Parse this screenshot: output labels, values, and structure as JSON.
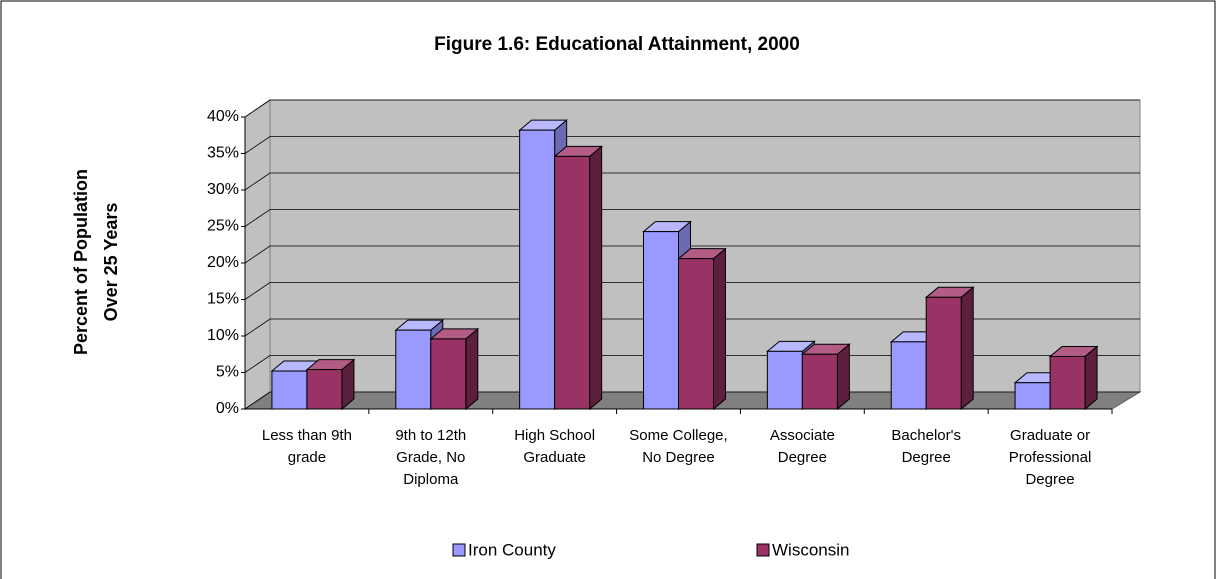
{
  "chart_data": {
    "type": "bar3d",
    "title": "Figure 1.6: Educational Attainment, 2000",
    "y_label": [
      "Percent of Population",
      "Over 25 Years"
    ],
    "categories": [
      "Less than 9th grade",
      "9th to 12th Grade, No Diploma",
      "High School Graduate",
      "Some College, No Degree",
      "Associate Degree",
      "Bachelor's Degree",
      "Graduate or Professional Degree"
    ],
    "series": [
      {
        "name": "Iron County",
        "color": "#9999ff",
        "side": "#6b6bb3",
        "top": "#b8b8ff",
        "values": [
          5.2,
          10.8,
          38.2,
          24.3,
          7.9,
          9.2,
          3.6
        ]
      },
      {
        "name": "Wisconsin",
        "color": "#993366",
        "side": "#5c1f3d",
        "top": "#b35c85",
        "values": [
          5.4,
          9.6,
          34.6,
          20.6,
          7.5,
          15.3,
          7.2
        ]
      }
    ],
    "ylim": [
      0,
      40
    ],
    "yticks": [
      {
        "value": 0,
        "label": "0%"
      },
      {
        "value": 5,
        "label": "5%"
      },
      {
        "value": 10,
        "label": "10%"
      },
      {
        "value": 15,
        "label": "15%"
      },
      {
        "value": 20,
        "label": "20%"
      },
      {
        "value": 25,
        "label": "25%"
      },
      {
        "value": 30,
        "label": "30%"
      },
      {
        "value": 35,
        "label": "35%"
      },
      {
        "value": 40,
        "label": "40%"
      }
    ],
    "grid": true,
    "legend": "bottom"
  }
}
